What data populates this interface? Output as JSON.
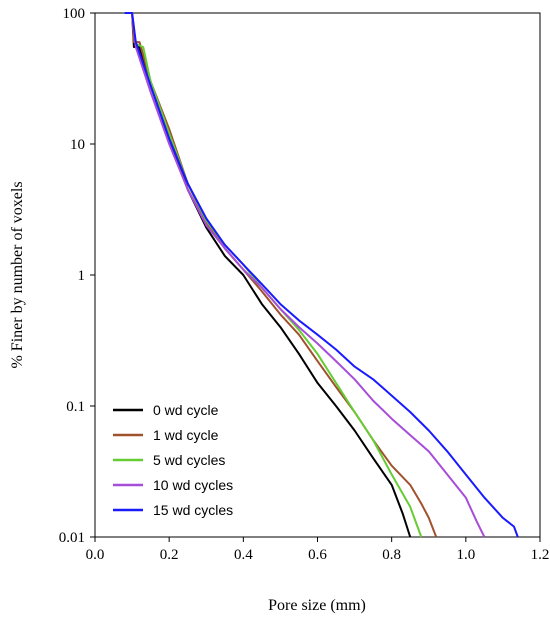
{
  "chart_data": {
    "type": "line",
    "title": "",
    "xlabel": "Pore size (mm)",
    "ylabel": "% Finer by number of voxels",
    "x_scale": "linear",
    "y_scale": "log",
    "xlim": [
      0.0,
      1.2
    ],
    "ylim": [
      0.01,
      100
    ],
    "x_ticks": [
      "0.0",
      "0.2",
      "0.4",
      "0.6",
      "0.8",
      "1.0",
      "1.2"
    ],
    "y_ticks": [
      "0.01",
      "0.1",
      "1",
      "10",
      "100"
    ],
    "grid": false,
    "legend_position": "bottom-left",
    "series": [
      {
        "name": "0 wd cycle",
        "color": "#000000",
        "points": [
          [
            0.08,
            100
          ],
          [
            0.1,
            100
          ],
          [
            0.105,
            55
          ],
          [
            0.12,
            55
          ],
          [
            0.15,
            28
          ],
          [
            0.2,
            11
          ],
          [
            0.25,
            4.5
          ],
          [
            0.3,
            2.3
          ],
          [
            0.35,
            1.4
          ],
          [
            0.4,
            1.0
          ],
          [
            0.45,
            0.6
          ],
          [
            0.5,
            0.4
          ],
          [
            0.55,
            0.25
          ],
          [
            0.6,
            0.15
          ],
          [
            0.65,
            0.1
          ],
          [
            0.7,
            0.065
          ],
          [
            0.75,
            0.04
          ],
          [
            0.8,
            0.025
          ],
          [
            0.83,
            0.015
          ],
          [
            0.85,
            0.01
          ]
        ]
      },
      {
        "name": "1 wd cycle",
        "color": "#a0522d",
        "points": [
          [
            0.08,
            100
          ],
          [
            0.1,
            100
          ],
          [
            0.105,
            60
          ],
          [
            0.12,
            60
          ],
          [
            0.15,
            30
          ],
          [
            0.2,
            13
          ],
          [
            0.25,
            5.0
          ],
          [
            0.3,
            2.5
          ],
          [
            0.35,
            1.6
          ],
          [
            0.4,
            1.1
          ],
          [
            0.45,
            0.75
          ],
          [
            0.5,
            0.5
          ],
          [
            0.55,
            0.35
          ],
          [
            0.6,
            0.22
          ],
          [
            0.65,
            0.14
          ],
          [
            0.7,
            0.09
          ],
          [
            0.75,
            0.055
          ],
          [
            0.8,
            0.035
          ],
          [
            0.85,
            0.025
          ],
          [
            0.88,
            0.018
          ],
          [
            0.9,
            0.014
          ],
          [
            0.92,
            0.01
          ]
        ]
      },
      {
        "name": "5 wd cycles",
        "color": "#66cc33",
        "points": [
          [
            0.08,
            100
          ],
          [
            0.1,
            100
          ],
          [
            0.11,
            58
          ],
          [
            0.13,
            55
          ],
          [
            0.15,
            30
          ],
          [
            0.2,
            12
          ],
          [
            0.25,
            5.0
          ],
          [
            0.3,
            2.6
          ],
          [
            0.35,
            1.7
          ],
          [
            0.4,
            1.2
          ],
          [
            0.45,
            0.8
          ],
          [
            0.5,
            0.55
          ],
          [
            0.55,
            0.38
          ],
          [
            0.6,
            0.25
          ],
          [
            0.65,
            0.15
          ],
          [
            0.7,
            0.09
          ],
          [
            0.75,
            0.055
          ],
          [
            0.8,
            0.03
          ],
          [
            0.85,
            0.017
          ],
          [
            0.88,
            0.01
          ]
        ]
      },
      {
        "name": "10 wd cycles",
        "color": "#a64dd9",
        "points": [
          [
            0.08,
            100
          ],
          [
            0.1,
            100
          ],
          [
            0.11,
            55
          ],
          [
            0.15,
            25
          ],
          [
            0.2,
            10
          ],
          [
            0.25,
            4.5
          ],
          [
            0.3,
            2.4
          ],
          [
            0.35,
            1.6
          ],
          [
            0.4,
            1.1
          ],
          [
            0.45,
            0.8
          ],
          [
            0.5,
            0.55
          ],
          [
            0.55,
            0.4
          ],
          [
            0.6,
            0.3
          ],
          [
            0.65,
            0.22
          ],
          [
            0.7,
            0.16
          ],
          [
            0.75,
            0.11
          ],
          [
            0.8,
            0.08
          ],
          [
            0.85,
            0.06
          ],
          [
            0.9,
            0.045
          ],
          [
            0.95,
            0.03
          ],
          [
            1.0,
            0.02
          ],
          [
            1.03,
            0.013
          ],
          [
            1.05,
            0.01
          ]
        ]
      },
      {
        "name": "15 wd cycles",
        "color": "#1a1aff",
        "points": [
          [
            0.08,
            100
          ],
          [
            0.1,
            100
          ],
          [
            0.11,
            60
          ],
          [
            0.15,
            28
          ],
          [
            0.2,
            11
          ],
          [
            0.25,
            5.0
          ],
          [
            0.3,
            2.7
          ],
          [
            0.35,
            1.7
          ],
          [
            0.4,
            1.2
          ],
          [
            0.45,
            0.85
          ],
          [
            0.5,
            0.6
          ],
          [
            0.55,
            0.45
          ],
          [
            0.6,
            0.35
          ],
          [
            0.65,
            0.27
          ],
          [
            0.7,
            0.2
          ],
          [
            0.75,
            0.16
          ],
          [
            0.8,
            0.12
          ],
          [
            0.85,
            0.09
          ],
          [
            0.9,
            0.065
          ],
          [
            0.95,
            0.045
          ],
          [
            1.0,
            0.03
          ],
          [
            1.05,
            0.02
          ],
          [
            1.1,
            0.014
          ],
          [
            1.13,
            0.012
          ],
          [
            1.14,
            0.01
          ]
        ]
      }
    ]
  }
}
